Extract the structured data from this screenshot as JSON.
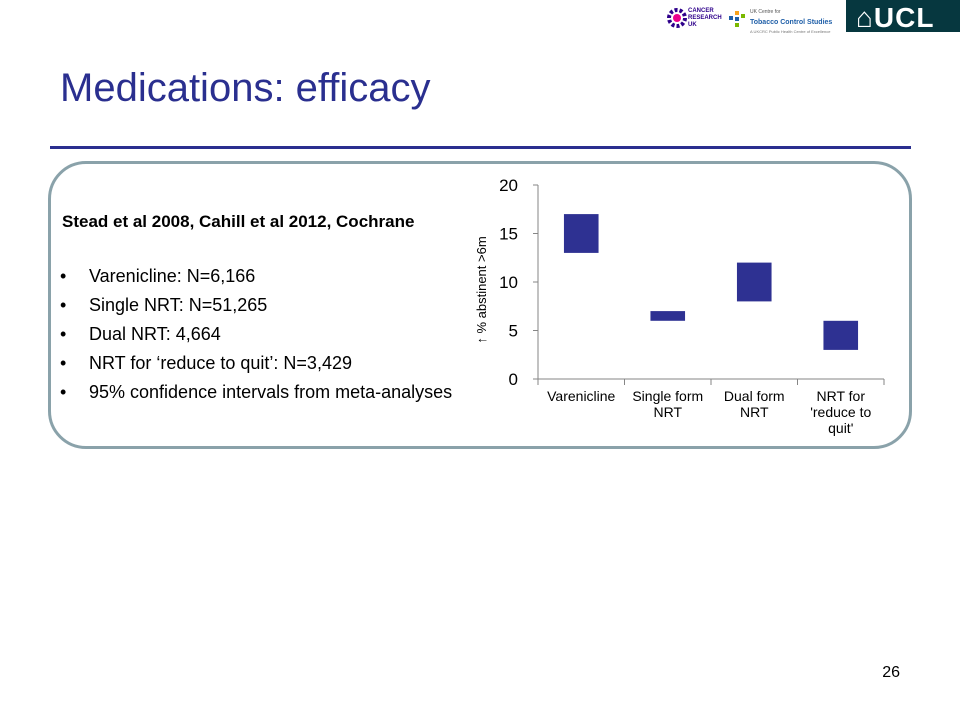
{
  "logos": {
    "cruk": "CANCER\nRESEARCH\nUK",
    "tobacco_small": "UK Centre for",
    "tobacco_main": "Tobacco Control Studies",
    "tobacco_foot": "A UKCRC Public Health Centre of Excellence",
    "ucl": "⌂UCL"
  },
  "slide": {
    "title": "Medications: efficacy",
    "study_heading": "Stead et al 2008, Cahill et al 2012, Cochrane",
    "bullets": [
      "Varenicline: N=6,166",
      "Single NRT: N=51,265",
      "Dual NRT: 4,664",
      "NRT for ‘reduce to quit’: N=3,429",
      "95% confidence intervals from meta-analyses"
    ],
    "bullet_symbol": "•",
    "page_number": "26"
  },
  "colors": {
    "title": "#2a2f8f",
    "bar": "#2e3192",
    "panel_border": "#8aa2aa"
  },
  "chart_data": {
    "type": "bar",
    "subtype": "floating range (95% confidence interval)",
    "ylabel": "↑ % abstinent >6m",
    "xlabel": "",
    "ylim": [
      0,
      20
    ],
    "yticks": [
      0,
      5,
      10,
      15,
      20
    ],
    "grid": false,
    "categories": [
      [
        "Varenicline"
      ],
      [
        "Single form",
        "NRT"
      ],
      [
        "Dual form",
        "NRT"
      ],
      [
        "NRT for",
        "'reduce to",
        "quit'"
      ]
    ],
    "series": [
      {
        "low": [
          13,
          6,
          8,
          3
        ],
        "high": [
          17,
          7,
          12,
          6
        ]
      }
    ]
  }
}
